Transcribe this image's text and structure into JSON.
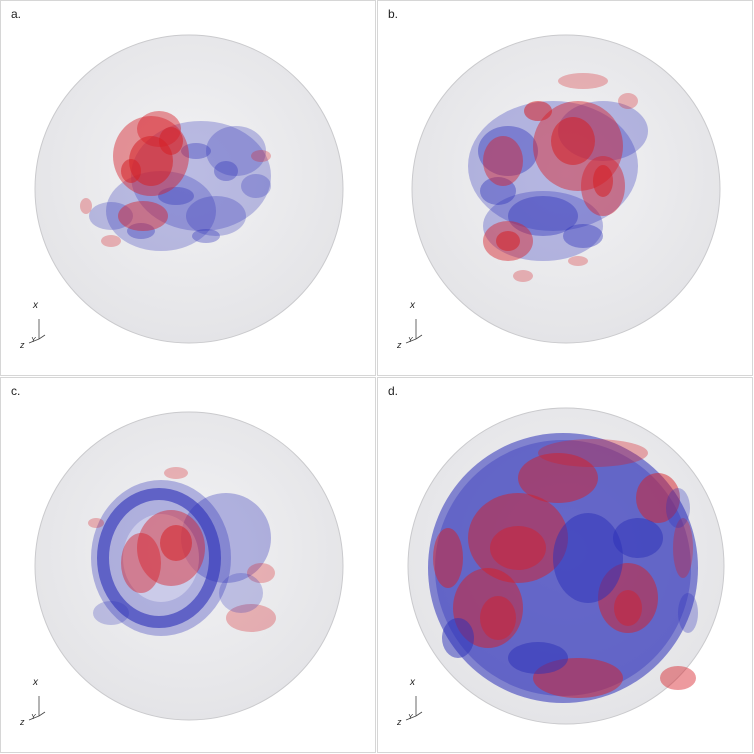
{
  "panels": [
    {
      "id": "a",
      "label": "a.",
      "axes": {
        "x": "x",
        "y": "Y",
        "z": "z"
      }
    },
    {
      "id": "b",
      "label": "b.",
      "axes": {
        "x": "x",
        "y": "Y",
        "z": "z"
      }
    },
    {
      "id": "c",
      "label": "c.",
      "axes": {
        "x": "x",
        "y": "Y",
        "z": "z"
      }
    },
    {
      "id": "d",
      "label": "d.",
      "axes": {
        "x": "x",
        "y": "Y",
        "z": "z"
      }
    }
  ],
  "colors": {
    "positive": "#d62027",
    "negative": "#2b2fb8",
    "sphere_fill": "#ebebed",
    "sphere_edge": "#c9c9cc"
  }
}
